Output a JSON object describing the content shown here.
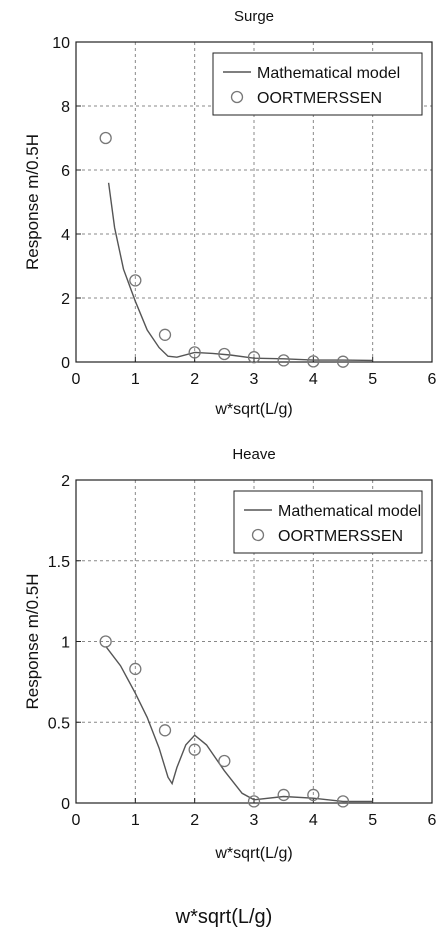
{
  "footer_label": "w*sqrt(L/g)",
  "colors": {
    "line": "#555555",
    "marker": "#777777",
    "grid": "#888888",
    "axis": "#222222"
  },
  "chart_data": [
    {
      "type": "line",
      "title": "Surge",
      "xlabel": "w*sqrt(L/g)",
      "ylabel": "Response m/0.5H",
      "xlim": [
        0,
        6
      ],
      "ylim": [
        0,
        10
      ],
      "xticks": [
        "0",
        "1",
        "2",
        "3",
        "4",
        "5",
        "6"
      ],
      "yticks": [
        "0",
        "2",
        "4",
        "6",
        "8",
        "10"
      ],
      "grid": true,
      "legend_position": "top-right",
      "series": [
        {
          "name": "Mathematical model",
          "style": "line",
          "x": [
            0.55,
            0.65,
            0.8,
            1.0,
            1.2,
            1.4,
            1.55,
            1.7,
            2.0,
            2.3,
            2.6,
            3.0,
            3.5,
            4.0,
            4.5,
            5.0
          ],
          "y": [
            5.6,
            4.2,
            2.9,
            1.9,
            1.0,
            0.45,
            0.18,
            0.15,
            0.3,
            0.27,
            0.22,
            0.12,
            0.1,
            0.06,
            0.06,
            0.05
          ]
        },
        {
          "name": "OORTMERSSEN",
          "style": "marker",
          "x": [
            0.5,
            1.0,
            1.5,
            2.0,
            2.5,
            3.0,
            3.5,
            4.0,
            4.5
          ],
          "y": [
            7.0,
            2.55,
            0.85,
            0.3,
            0.25,
            0.15,
            0.05,
            0.02,
            0.01
          ]
        }
      ]
    },
    {
      "type": "line",
      "title": "Heave",
      "xlabel": "w*sqrt(L/g)",
      "ylabel": "Response m/0.5H",
      "xlim": [
        0,
        6
      ],
      "ylim": [
        0,
        2
      ],
      "xticks": [
        "0",
        "1",
        "2",
        "3",
        "4",
        "5",
        "6"
      ],
      "yticks": [
        "0",
        "0.5",
        "1",
        "1.5",
        "2"
      ],
      "grid": true,
      "legend_position": "top-right",
      "series": [
        {
          "name": "Mathematical model",
          "style": "line",
          "x": [
            0.5,
            0.75,
            1.0,
            1.2,
            1.4,
            1.55,
            1.62,
            1.7,
            1.85,
            2.0,
            2.2,
            2.5,
            2.8,
            3.0,
            3.5,
            4.0,
            4.5,
            5.0
          ],
          "y": [
            0.97,
            0.85,
            0.68,
            0.53,
            0.34,
            0.16,
            0.12,
            0.22,
            0.36,
            0.42,
            0.36,
            0.2,
            0.06,
            0.02,
            0.04,
            0.03,
            0.01,
            0.01
          ]
        },
        {
          "name": "OORTMERSSEN",
          "style": "marker",
          "x": [
            0.5,
            1.0,
            1.5,
            2.0,
            2.5,
            3.0,
            3.5,
            4.0,
            4.5
          ],
          "y": [
            1.0,
            0.83,
            0.45,
            0.33,
            0.26,
            0.01,
            0.05,
            0.05,
            0.01
          ]
        }
      ]
    }
  ]
}
